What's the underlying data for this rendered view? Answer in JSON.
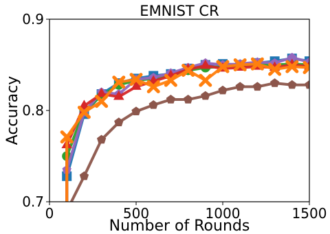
{
  "chart_data": {
    "type": "line",
    "title": "EMNIST CR",
    "xlabel": "Number of Rounds",
    "ylabel": "Accuracy",
    "xlim": [
      0,
      1500
    ],
    "ylim": [
      0.7,
      0.9
    ],
    "xticks": [
      0,
      500,
      1000,
      1500
    ],
    "xtick_labels": [
      "0",
      "500",
      "1000",
      "1500"
    ],
    "yticks": [
      0.7,
      0.8,
      0.9
    ],
    "ytick_labels": [
      "0.7",
      "0.8",
      "0.9"
    ],
    "grid": false,
    "x": [
      100,
      200,
      300,
      400,
      500,
      600,
      700,
      800,
      900,
      1000,
      1100,
      1200,
      1300,
      1400,
      1500
    ],
    "series": [
      {
        "color": "#1f77b4",
        "marker": "square",
        "values": [
          0.728,
          0.796,
          0.818,
          0.83,
          0.835,
          0.838,
          0.84,
          0.846,
          0.85,
          0.851,
          0.85,
          0.852,
          0.854,
          0.857,
          0.854
        ]
      },
      {
        "color": "#2ca02c",
        "marker": "circle",
        "values": [
          0.75,
          0.8,
          0.816,
          0.828,
          0.833,
          0.835,
          0.838,
          0.844,
          0.847,
          0.848,
          0.849,
          0.85,
          0.85,
          0.851,
          0.85
        ]
      },
      {
        "color": "#9467bd",
        "marker": "pentagon",
        "values": [
          0.735,
          0.798,
          0.82,
          0.818,
          0.834,
          0.836,
          0.841,
          0.847,
          0.852,
          0.85,
          0.851,
          0.853,
          0.852,
          0.858,
          0.853
        ]
      },
      {
        "color": "#d62728",
        "marker": "triangle",
        "values": [
          0.762,
          0.805,
          0.818,
          0.815,
          0.826,
          0.832,
          0.838,
          0.845,
          0.849,
          0.846,
          0.847,
          0.848,
          0.847,
          0.85,
          0.848
        ]
      },
      {
        "color": "#ff7f0e",
        "marker": "x",
        "values": [
          0.771,
          0.798,
          0.81,
          0.831,
          0.834,
          0.826,
          0.833,
          0.844,
          0.833,
          0.848,
          0.85,
          0.851,
          0.845,
          0.848,
          0.847
        ]
      },
      {
        "color": "#8c564b",
        "marker": "pentagon",
        "values": [
          0.69,
          0.728,
          0.768,
          0.787,
          0.799,
          0.806,
          0.812,
          0.812,
          0.816,
          0.822,
          0.826,
          0.826,
          0.83,
          0.828,
          0.828
        ]
      }
    ]
  }
}
